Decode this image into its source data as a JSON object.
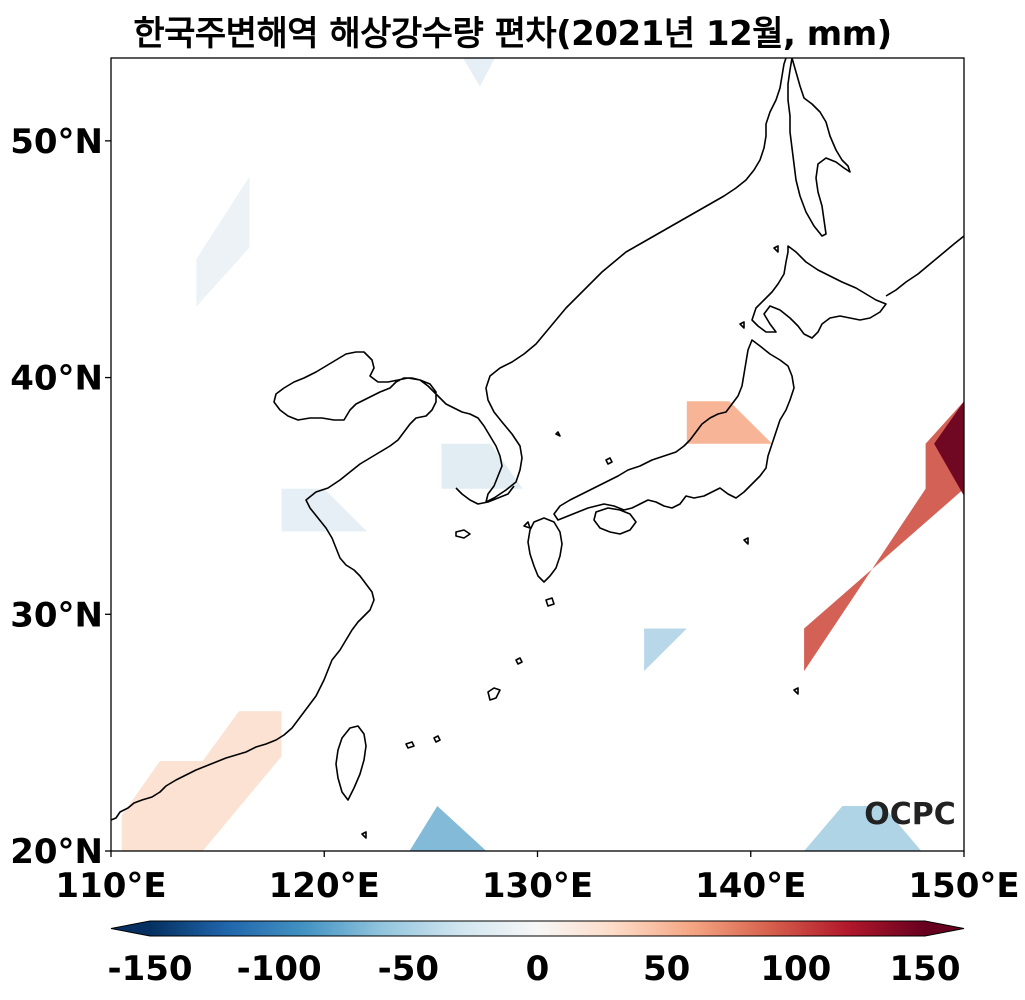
{
  "title": "한국주변해역 해상강수량 편차(2021년 12월, mm)",
  "watermark": "OCPC",
  "map": {
    "lon_range": [
      110,
      150
    ],
    "lat_range": [
      20,
      53.5
    ],
    "x_ticks": [
      {
        "value": 110,
        "label": "110°E"
      },
      {
        "value": 120,
        "label": "120°E"
      },
      {
        "value": 130,
        "label": "130°E"
      },
      {
        "value": 140,
        "label": "140°E"
      },
      {
        "value": 150,
        "label": "150°E"
      }
    ],
    "y_ticks": [
      {
        "value": 20,
        "label": "20°N"
      },
      {
        "value": 30,
        "label": "30°N"
      },
      {
        "value": 40,
        "label": "40°N"
      },
      {
        "value": 50,
        "label": "50°N"
      }
    ],
    "anomaly_patches": [
      {
        "region": "northwest-open-sea",
        "value": -10,
        "polygon": [
          [
            114,
            45
          ],
          [
            116.5,
            48.5
          ],
          [
            116.5,
            45.5
          ],
          [
            114,
            43
          ]
        ]
      },
      {
        "region": "east-sea-north",
        "value": -15,
        "polygon": [
          [
            126.5,
            53.5
          ],
          [
            127.3,
            52.3
          ],
          [
            128,
            53.5
          ]
        ]
      },
      {
        "region": "yellow-sea",
        "value": -15,
        "polygon": [
          [
            118,
            35.3
          ],
          [
            120,
            35.3
          ],
          [
            122,
            33.5
          ],
          [
            118,
            33.5
          ]
        ]
      },
      {
        "region": "korea-strait",
        "value": -20,
        "polygon": [
          [
            125.5,
            37.2
          ],
          [
            127.8,
            37.2
          ],
          [
            129.3,
            35.3
          ],
          [
            125.5,
            35.3
          ]
        ]
      },
      {
        "region": "east-sea-japan-coast",
        "value": 55,
        "polygon": [
          [
            137,
            39
          ],
          [
            139,
            39
          ],
          [
            141,
            37.2
          ],
          [
            137,
            37.2
          ]
        ]
      },
      {
        "region": "south-of-japan",
        "value": -45,
        "polygon": [
          [
            135,
            29.4
          ],
          [
            137,
            29.4
          ],
          [
            135,
            27.6
          ]
        ]
      },
      {
        "region": "south-china-coast",
        "value": 25,
        "polygon": [
          [
            110.5,
            21.5
          ],
          [
            112.3,
            23.8
          ],
          [
            114.3,
            23.8
          ],
          [
            116,
            25.9
          ],
          [
            118,
            25.9
          ],
          [
            118,
            24
          ],
          [
            114.3,
            20
          ],
          [
            110.5,
            20
          ]
        ]
      },
      {
        "region": "east-of-taiwan-south",
        "value": -70,
        "polygon": [
          [
            124,
            20
          ],
          [
            125.3,
            21.9
          ],
          [
            127.6,
            20
          ]
        ]
      },
      {
        "region": "northwest-pacific-band",
        "value": 95,
        "polygon": [
          [
            142.5,
            27.6
          ],
          [
            148.2,
            35.3
          ],
          [
            148.2,
            37.2
          ],
          [
            150,
            39
          ],
          [
            150,
            35.3
          ],
          [
            142.5,
            29.4
          ]
        ]
      },
      {
        "region": "pacific-edge-strong",
        "value": 150,
        "polygon": [
          [
            148.6,
            37.2
          ],
          [
            150,
            39
          ],
          [
            150,
            35
          ]
        ]
      },
      {
        "region": "southeast-corner",
        "value": -50,
        "polygon": [
          [
            142.5,
            20
          ],
          [
            144.3,
            21.9
          ],
          [
            146.2,
            21.9
          ],
          [
            148,
            20
          ]
        ]
      }
    ]
  },
  "colorbar": {
    "min": -150,
    "max": 150,
    "colormap": "RdBu_r",
    "ticks": [
      {
        "value": -150,
        "label": "-150"
      },
      {
        "value": -100,
        "label": "-100"
      },
      {
        "value": -50,
        "label": "-50"
      },
      {
        "value": 0,
        "label": "0"
      },
      {
        "value": 50,
        "label": "50"
      },
      {
        "value": 100,
        "label": "100"
      },
      {
        "value": 150,
        "label": "150"
      }
    ],
    "colors": [
      "#053061",
      "#2166ac",
      "#4393c3",
      "#92c5de",
      "#d1e5f0",
      "#f7f7f7",
      "#fddbc7",
      "#f4a582",
      "#d6604d",
      "#b2182b",
      "#67001f"
    ]
  }
}
